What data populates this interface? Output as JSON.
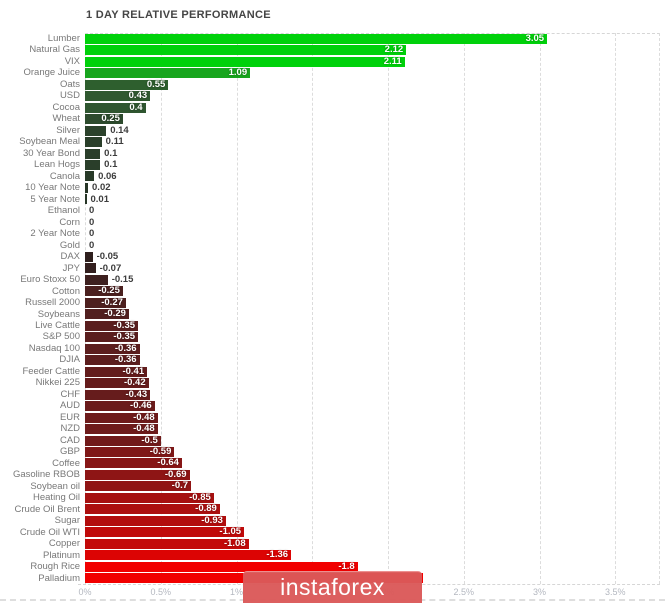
{
  "title": "1 DAY RELATIVE PERFORMANCE",
  "watermark": {
    "text": "instaforex",
    "bg_color": "#db5858",
    "text_color": "#ffffff"
  },
  "axis": {
    "ticks": [
      {
        "label": "0%",
        "value": 0
      },
      {
        "label": "0.5%",
        "value": 0.5
      },
      {
        "label": "1%",
        "value": 1
      },
      {
        "label": "1.5%",
        "value": 1.5
      },
      {
        "label": "2%",
        "value": 2
      },
      {
        "label": "2.5%",
        "value": 2.5
      },
      {
        "label": "3%",
        "value": 3
      },
      {
        "label": "3.5%",
        "value": 3.5
      }
    ]
  },
  "chart_data": {
    "type": "bar",
    "orientation": "horizontal",
    "title": "1 DAY RELATIVE PERFORMANCE",
    "xlabel": "",
    "ylabel": "",
    "xlim": [
      0,
      3.8
    ],
    "grid": "vertical-dashed",
    "legend": "none",
    "bar_length_basis": "absolute-value",
    "positive_color_max": "#00d10b",
    "negative_color_max": "#f10000",
    "categories": [
      "Lumber",
      "Natural Gas",
      "VIX",
      "Orange Juice",
      "Oats",
      "USD",
      "Cocoa",
      "Wheat",
      "Silver",
      "Soybean Meal",
      "30 Year Bond",
      "Lean Hogs",
      "Canola",
      "10 Year Note",
      "5 Year Note",
      "Ethanol",
      "Corn",
      "2 Year Note",
      "Gold",
      "DAX",
      "JPY",
      "Euro Stoxx 50",
      "Cotton",
      "Russell 2000",
      "Soybeans",
      "Live Cattle",
      "S&P 500",
      "Nasdaq 100",
      "DJIA",
      "Feeder Cattle",
      "Nikkei 225",
      "CHF",
      "AUD",
      "EUR",
      "NZD",
      "CAD",
      "GBP",
      "Coffee",
      "Gasoline RBOB",
      "Soybean oil",
      "Heating Oil",
      "Crude Oil Brent",
      "Sugar",
      "Crude Oil WTI",
      "Copper",
      "Platinum",
      "Rough Rice",
      "Palladium"
    ],
    "values": [
      3.05,
      2.12,
      2.11,
      1.09,
      0.55,
      0.43,
      0.4,
      0.25,
      0.14,
      0.11,
      0.1,
      0.1,
      0.06,
      0.02,
      0.01,
      0,
      0,
      0,
      0,
      -0.05,
      -0.07,
      -0.15,
      -0.25,
      -0.27,
      -0.29,
      -0.35,
      -0.35,
      -0.36,
      -0.36,
      -0.41,
      -0.42,
      -0.43,
      -0.46,
      -0.48,
      -0.48,
      -0.5,
      -0.59,
      -0.64,
      -0.69,
      -0.7,
      -0.85,
      -0.89,
      -0.93,
      -1.05,
      -1.08,
      -1.36,
      -1.8,
      -2.23
    ],
    "value_labels": [
      "3.05",
      "2.12",
      "2.11",
      "1.09",
      "0.55",
      "0.43",
      "0.4",
      "0.25",
      "0.14",
      "0.11",
      "0.1",
      "0.1",
      "0.06",
      "0.02",
      "0.01",
      "0",
      "0",
      "0",
      "0",
      "-0.05",
      "-0.07",
      "-0.15",
      "-0.25",
      "-0.27",
      "-0.29",
      "-0.35",
      "-0.35",
      "-0.36",
      "-0.36",
      "-0.41",
      "-0.42",
      "-0.43",
      "-0.46",
      "-0.48",
      "-0.48",
      "-0.5",
      "-0.59",
      "-0.64",
      "-0.69",
      "-0.7",
      "-0.85",
      "-0.89",
      "-0.93",
      "-1.05",
      "-1.08",
      "-1.36",
      "-1.8",
      ""
    ],
    "colors": [
      "#00d10b",
      "#00d10b",
      "#00d10b",
      "#18a51e",
      "#2e5f2e",
      "#2f582f",
      "#2f5630",
      "#2d4b2d",
      "#2b422b",
      "#2a3f2a",
      "#2a3e2a",
      "#2a3e2a",
      "#283a28",
      "#273627",
      "#263526",
      "#333333",
      "#333333",
      "#333333",
      "#333333",
      "#2e1f1d",
      "#331f1e",
      "#3e201f",
      "#4b201f",
      "#4e201f",
      "#511f1f",
      "#5a1e1e",
      "#5a1e1e",
      "#5c1e1e",
      "#5c1e1e",
      "#631d1d",
      "#651c1c",
      "#661c1c",
      "#6b1b1b",
      "#6e1b1b",
      "#6e1b1b",
      "#711a1a",
      "#7f1818",
      "#871616",
      "#8e1515",
      "#901414",
      "#a61010",
      "#ac0f0f",
      "#b20d0d",
      "#c00a0a",
      "#c30909",
      "#dc0404",
      "#f10000",
      "#f10000"
    ]
  }
}
